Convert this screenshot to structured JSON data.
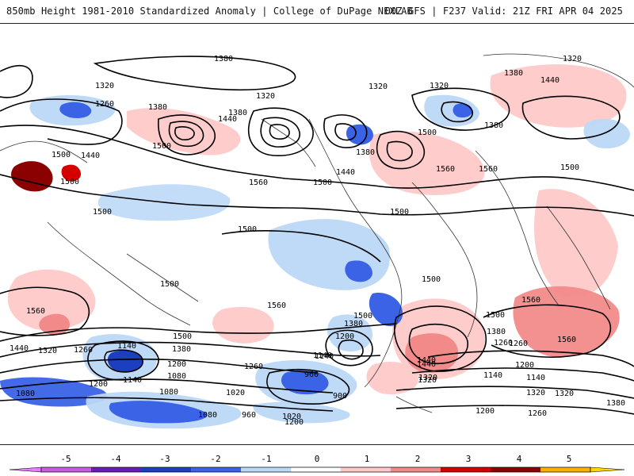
{
  "header": {
    "left_text": "850mb Height 1981-2010 Standardized Anomaly | College of DuPage NEXLAB",
    "right_text": "00Z GFS | F237 Valid: 21Z FRI APR 04 2025"
  },
  "colorbar": {
    "ticks": [
      "-5",
      "-4",
      "-3",
      "-2",
      "-1",
      "0",
      "1",
      "2",
      "3",
      "4",
      "5"
    ],
    "colors": [
      "#f0a3f0",
      "#9b30ff",
      "#1c3fbf",
      "#3a63e6",
      "#bcd8f7",
      "#ffffff",
      "#ffc9c9",
      "#f28a8a",
      "#d40000",
      "#8b0000",
      "#ffb000"
    ],
    "left_cap": "#e47cff",
    "right_cap": "#ffd700"
  },
  "contour_labels": [
    "1380",
    "1320",
    "1320",
    "1260",
    "1380",
    "1440",
    "1380",
    "1320",
    "1320",
    "1320",
    "1380",
    "1380",
    "1500",
    "1440",
    "1500",
    "1500",
    "1500",
    "1560",
    "1500",
    "1440",
    "1500",
    "1560",
    "1560",
    "1440",
    "1380",
    "1500",
    "1500",
    "1500",
    "1500",
    "1500",
    "1560",
    "1560",
    "1500",
    "1500",
    "1560",
    "1560",
    "1380",
    "1200",
    "1140",
    "1440",
    "1320",
    "1500",
    "1380",
    "1260",
    "1200",
    "1140",
    "1140",
    "1080",
    "1020",
    "960",
    "900",
    "1080",
    "1020",
    "1200",
    "1440",
    "1320",
    "1260",
    "1200",
    "1140",
    "1380",
    "1320",
    "1260",
    "1200",
    "1140",
    "1080",
    "960",
    "1080",
    "1320",
    "1200",
    "1260",
    "1380",
    "1140",
    "1320",
    "1440",
    "1260"
  ]
}
